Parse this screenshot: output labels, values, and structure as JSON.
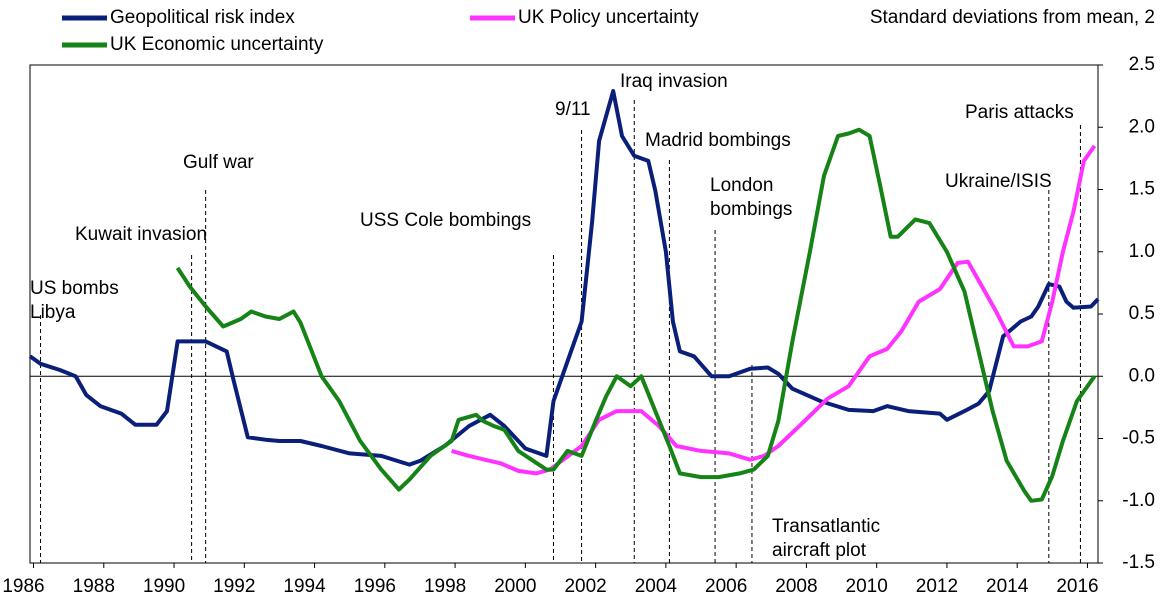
{
  "chart_data": {
    "type": "line",
    "title": "Standard deviations from mean, 2",
    "xlim": [
      1985.9,
      2016.3
    ],
    "xticks": [
      1986,
      1988,
      1990,
      1992,
      1994,
      1996,
      1998,
      2000,
      2002,
      2004,
      2006,
      2008,
      2010,
      2012,
      2014,
      2016
    ],
    "ylim": [
      -1.5,
      2.5
    ],
    "yticks": [
      {
        "value": -1.5,
        "label": "-1.5"
      },
      {
        "value": -1,
        "label": "-1.0"
      },
      {
        "value": -0.5,
        "label": "-0.5"
      },
      {
        "value": 0,
        "label": "0.0"
      },
      {
        "value": 0.5,
        "label": "0.5"
      },
      {
        "value": 1,
        "label": "1.0"
      },
      {
        "value": 1.5,
        "label": "1.5"
      },
      {
        "value": 2,
        "label": "2.0"
      },
      {
        "value": 2.5,
        "label": "2.5"
      }
    ],
    "legend": "top-left",
    "series": [
      {
        "name": "Geopolitical risk index",
        "color": "#0a1f7a",
        "x": [
          1985.9,
          1986.2,
          1986.75,
          1987.2,
          1987.5,
          1987.9,
          1988.5,
          1988.9,
          1989.5,
          1989.8,
          1990.1,
          1990.4,
          1990.9,
          1991.5,
          1991.7,
          1992.1,
          1992.6,
          1993.0,
          1993.6,
          1994.2,
          1995.0,
          1995.9,
          1996.7,
          1997.0,
          1997.7,
          1998.4,
          1999.0,
          1999.4,
          2000.0,
          2000.6,
          2000.8,
          2001.3,
          2001.6,
          2001.9,
          2002.1,
          2002.5,
          2002.75,
          2003.1,
          2003.5,
          2003.7,
          2004.0,
          2004.2,
          2004.4,
          2004.8,
          2005.3,
          2005.8,
          2006.4,
          2006.9,
          2007.2,
          2007.6,
          2008.4,
          2009.2,
          2009.9,
          2010.3,
          2010.9,
          2011.8,
          2012.0,
          2012.5,
          2012.9,
          2013.2,
          2013.6,
          2014.1,
          2014.4,
          2014.6,
          2014.9,
          2015.2,
          2015.4,
          2015.6,
          2016.1,
          2016.3
        ],
        "values": [
          0.16,
          0.1,
          0.05,
          0.0,
          -0.15,
          -0.24,
          -0.3,
          -0.39,
          -0.39,
          -0.28,
          0.28,
          0.28,
          0.28,
          0.2,
          -0.04,
          -0.49,
          -0.51,
          -0.52,
          -0.52,
          -0.56,
          -0.62,
          -0.64,
          -0.71,
          -0.68,
          -0.56,
          -0.4,
          -0.31,
          -0.4,
          -0.58,
          -0.64,
          -0.2,
          0.2,
          0.44,
          1.24,
          1.89,
          2.29,
          1.93,
          1.77,
          1.73,
          1.49,
          1.0,
          0.44,
          0.2,
          0.16,
          0.0,
          0.0,
          0.06,
          0.07,
          0.02,
          -0.1,
          -0.2,
          -0.27,
          -0.28,
          -0.24,
          -0.28,
          -0.3,
          -0.35,
          -0.28,
          -0.22,
          -0.12,
          0.32,
          0.44,
          0.48,
          0.56,
          0.74,
          0.72,
          0.6,
          0.55,
          0.56,
          0.62
        ]
      },
      {
        "name": "UK Policy uncertainty",
        "color": "#ff33ff",
        "x": [
          1997.9,
          1998.4,
          1999.3,
          1999.8,
          2000.3,
          2000.7,
          2001.6,
          2002.1,
          2002.6,
          2003.3,
          2003.8,
          2004.3,
          2005.0,
          2005.8,
          2006.4,
          2006.8,
          2007.2,
          2007.8,
          2008.6,
          2009.2,
          2009.8,
          2010.3,
          2010.7,
          2011.2,
          2011.8,
          2012.3,
          2012.6,
          2013.0,
          2013.4,
          2013.9,
          2014.3,
          2014.7,
          2015.0,
          2015.3,
          2015.6,
          2015.9,
          2016.2
        ],
        "values": [
          -0.6,
          -0.64,
          -0.7,
          -0.76,
          -0.78,
          -0.75,
          -0.56,
          -0.35,
          -0.28,
          -0.28,
          -0.4,
          -0.56,
          -0.6,
          -0.62,
          -0.67,
          -0.64,
          -0.56,
          -0.4,
          -0.18,
          -0.08,
          0.16,
          0.22,
          0.36,
          0.6,
          0.7,
          0.91,
          0.92,
          0.72,
          0.52,
          0.24,
          0.24,
          0.28,
          0.6,
          1.0,
          1.32,
          1.73,
          1.85
        ]
      },
      {
        "name": "UK Economic uncertainty",
        "color": "#168316",
        "x": [
          1990.1,
          1990.45,
          1990.9,
          1991.4,
          1991.9,
          1992.2,
          1992.6,
          1993.0,
          1993.4,
          1993.6,
          1994.2,
          1994.7,
          1995.3,
          1995.9,
          1996.4,
          1996.7,
          1997.3,
          1997.9,
          1998.1,
          1998.6,
          1998.8,
          1999.1,
          1999.4,
          1999.8,
          2000.6,
          2000.8,
          2001.2,
          2001.6,
          2002.0,
          2002.3,
          2002.6,
          2003.0,
          2003.3,
          2003.7,
          2004.1,
          2004.4,
          2005.0,
          2005.5,
          2006.1,
          2006.5,
          2006.9,
          2007.2,
          2007.6,
          2008.1,
          2008.5,
          2008.9,
          2009.2,
          2009.5,
          2009.8,
          2010.1,
          2010.4,
          2010.6,
          2011.1,
          2011.5,
          2012.0,
          2012.5,
          2012.9,
          2013.3,
          2013.7,
          2014.2,
          2014.4,
          2014.7,
          2015.0,
          2015.3,
          2015.7,
          2016.2
        ],
        "values": [
          0.87,
          0.72,
          0.56,
          0.4,
          0.46,
          0.52,
          0.48,
          0.46,
          0.52,
          0.43,
          0.0,
          -0.2,
          -0.52,
          -0.75,
          -0.91,
          -0.83,
          -0.64,
          -0.52,
          -0.35,
          -0.31,
          -0.36,
          -0.4,
          -0.43,
          -0.6,
          -0.75,
          -0.75,
          -0.6,
          -0.64,
          -0.36,
          -0.16,
          0.0,
          -0.08,
          0.0,
          -0.28,
          -0.56,
          -0.78,
          -0.81,
          -0.81,
          -0.78,
          -0.75,
          -0.64,
          -0.36,
          0.28,
          1.0,
          1.61,
          1.93,
          1.95,
          1.98,
          1.93,
          1.53,
          1.12,
          1.12,
          1.26,
          1.23,
          1.0,
          0.68,
          0.2,
          -0.28,
          -0.68,
          -0.92,
          -1.0,
          -0.99,
          -0.8,
          -0.52,
          -0.2,
          0.0
        ]
      }
    ],
    "annotations": [
      {
        "text": [
          "US bombs",
          "Libya"
        ],
        "x": 1986.2
      },
      {
        "text": [
          "Kuwait invasion"
        ],
        "x": 1990.5
      },
      {
        "text": [
          "Gulf war"
        ],
        "x": 1990.9
      },
      {
        "text": [
          "USS Cole bombings"
        ],
        "x": 2000.8
      },
      {
        "text": [
          "9/11"
        ],
        "x": 2001.6
      },
      {
        "text": [
          "Iraq invasion"
        ],
        "x": 2003.1
      },
      {
        "text": [
          "Madrid bombings"
        ],
        "x": 2004.1
      },
      {
        "text": [
          "London",
          "bombings"
        ],
        "x": 2005.4
      },
      {
        "text": [
          "Transatlantic",
          "aircraft plot"
        ],
        "x": 2006.45
      },
      {
        "text": [
          "Ukraine/ISIS"
        ],
        "x": 2014.9
      },
      {
        "text": [
          "Paris attacks"
        ],
        "x": 2015.8
      }
    ]
  }
}
